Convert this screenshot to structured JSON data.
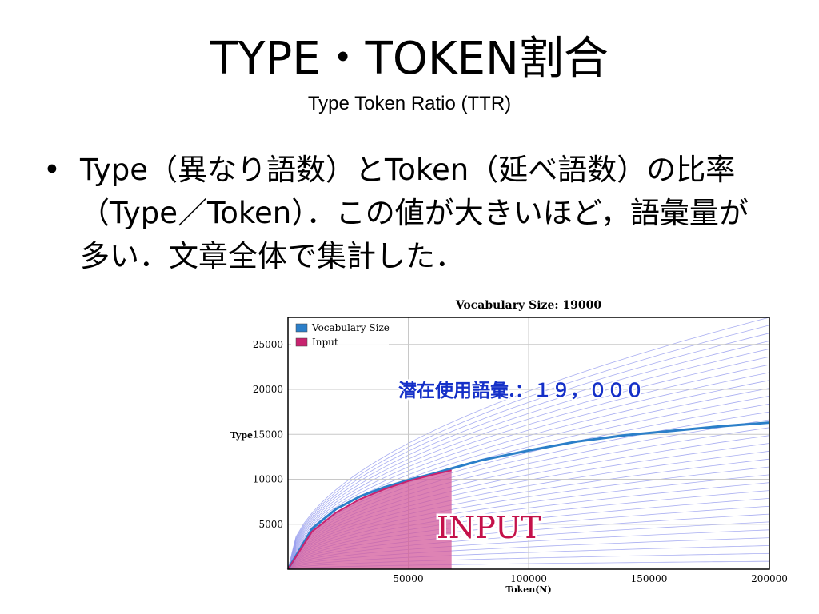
{
  "slide": {
    "title": "TYPE・TOKEN割合",
    "subtitle": "Type Token Ratio (TTR)",
    "bullet_marker": "•",
    "bullet_text": "Type（異なり語数）とToken（延べ語数）の比率（Type／Token）．この値が大きいほど，語彙量が多い．文章全体で集計した．"
  },
  "colors": {
    "vocab_line": "#2b7fc9",
    "input_line": "#c8236f",
    "input_fill": "#d35a9b",
    "envelope": "#9aa0ee",
    "annotation_blue": "#1530c8",
    "annotation_input": "#c4114a"
  },
  "chart_data": {
    "type": "line",
    "title": "Vocabulary Size: 19000",
    "xlabel": "Token(N)",
    "ylabel": "Type",
    "xlim": [
      0,
      200000
    ],
    "ylim": [
      0,
      28000
    ],
    "x_ticks": [
      50000,
      100000,
      150000,
      200000
    ],
    "y_ticks": [
      5000,
      10000,
      15000,
      20000,
      25000
    ],
    "grid": true,
    "legend_position": "top-left",
    "series": [
      {
        "name": "Vocabulary Size",
        "color": "#2b7fc9",
        "x": [
          0,
          10000,
          20000,
          30000,
          40000,
          50000,
          60000,
          68000,
          80000,
          100000,
          120000,
          140000,
          160000,
          180000,
          200000
        ],
        "y": [
          0,
          4500,
          6700,
          8100,
          9100,
          9900,
          10600,
          11200,
          12100,
          13200,
          14200,
          14900,
          15400,
          15900,
          16300
        ]
      },
      {
        "name": "Input",
        "color": "#c8236f",
        "x": [
          0,
          10000,
          20000,
          30000,
          40000,
          50000,
          60000,
          68000
        ],
        "y": [
          0,
          4200,
          6300,
          7800,
          8900,
          9800,
          10500,
          11000
        ]
      }
    ],
    "envelope": {
      "description_curves": 32,
      "upper_end": 28000,
      "lower_end": 0
    },
    "input_region_end_x": 68000,
    "annotations": [
      {
        "text": "潜在使用語彙.：１９，０００",
        "x": 92000,
        "y": 19200
      },
      {
        "text": "INPUT",
        "x": 78000,
        "y": 4600
      }
    ]
  }
}
